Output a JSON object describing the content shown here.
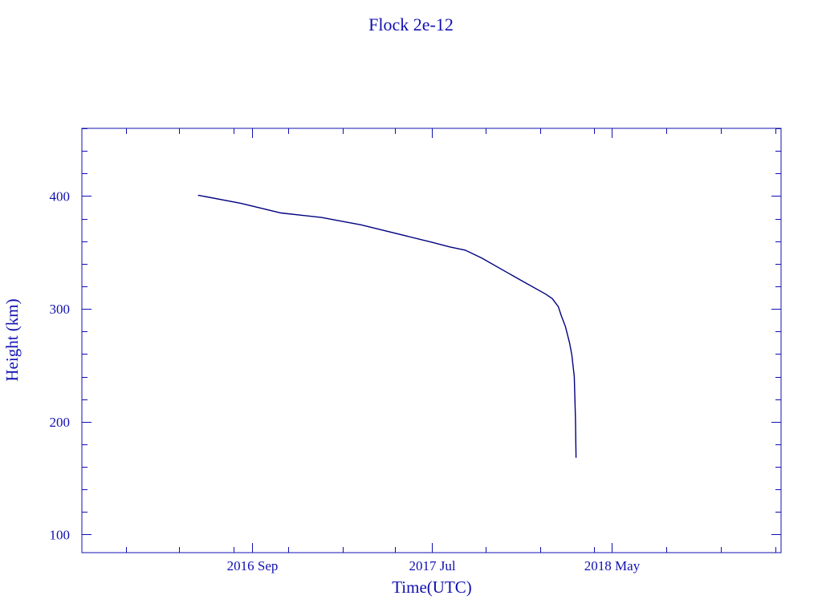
{
  "chart_data": {
    "type": "line",
    "title": "Flock 2e-12",
    "xlabel": "Time(UTC)",
    "ylabel": "Height (km)",
    "xlim": [
      "2015-11-19",
      "2019-02-11"
    ],
    "ylim": [
      84,
      460
    ],
    "x_ticks": [
      {
        "date": "2016-09-01",
        "label": "2016 Sep"
      },
      {
        "date": "2017-07-01",
        "label": "2017 Jul"
      },
      {
        "date": "2018-05-01",
        "label": "2018 May"
      }
    ],
    "y_ticks": [
      100,
      200,
      300,
      400
    ],
    "grid": false,
    "colors": {
      "line": "#000080",
      "axes": "#1010b0",
      "text": "#1010b0"
    },
    "series": [
      {
        "x": [
          "2016-06-02",
          "2016-08-13",
          "2016-10-20",
          "2016-12-27",
          "2017-03-04",
          "2017-07-02",
          "2017-07-31",
          "2017-08-27",
          "2017-09-24",
          "2017-11-30",
          "2018-01-10",
          "2018-01-21",
          "2018-01-31",
          "2018-02-05",
          "2018-02-12",
          "2018-02-19",
          "2018-02-23",
          "2018-02-27",
          "2018-03-01",
          "2018-03-02"
        ],
        "y": [
          400.7,
          393.6,
          385,
          381,
          374.5,
          359,
          355,
          352,
          345,
          325,
          313,
          309,
          302,
          294,
          284.5,
          270,
          259,
          240,
          202,
          168
        ]
      }
    ]
  }
}
